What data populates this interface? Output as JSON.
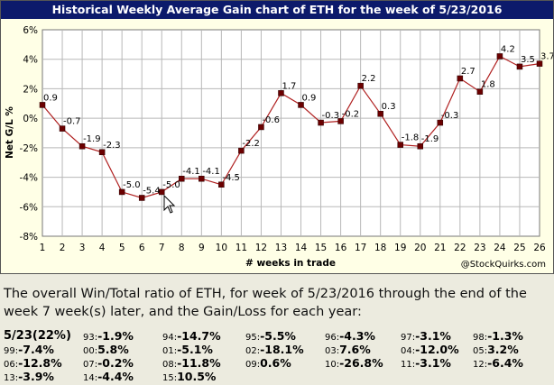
{
  "title": "Historical Weekly Average Gain chart of ETH for the week of 5/23/2016",
  "credit": "@StockQuirks.com",
  "chart_data": {
    "type": "line",
    "xlabel": "# weeks in trade",
    "ylabel": "Net G/L %",
    "x": [
      1,
      2,
      3,
      4,
      5,
      6,
      7,
      8,
      9,
      10,
      11,
      12,
      13,
      14,
      15,
      16,
      17,
      18,
      19,
      20,
      21,
      22,
      23,
      24,
      25,
      26
    ],
    "series": [
      {
        "values": [
          0.9,
          -0.7,
          -1.9,
          -2.3,
          -5.0,
          -5.4,
          -5.0,
          -4.1,
          -4.1,
          -4.5,
          -2.2,
          -0.6,
          1.7,
          0.9,
          -0.3,
          -0.2,
          2.2,
          0.3,
          -1.8,
          -1.9,
          -0.3,
          2.7,
          1.8,
          4.2,
          3.5,
          3.7
        ],
        "labels": [
          "0.9",
          "-0.7",
          "-1.9",
          "-2.3",
          "-5.0",
          "-5.4",
          "-5.0",
          "-4.1",
          "-4.1",
          "-4.5",
          "-2.2",
          "-0.6",
          "1.7",
          "0.9",
          "-0.3",
          "-0.2",
          "2.2",
          "0.3",
          "-1.8",
          "-1.9",
          "-0.3",
          "2.7",
          "1.8",
          "4.2",
          "3.5",
          "3.7"
        ]
      }
    ],
    "ylim": [
      -8,
      6
    ],
    "yticks": [
      "6%",
      "4%",
      "2%",
      "0%",
      "-2%",
      "-4%",
      "-6%",
      "-8%"
    ],
    "ytick_values": [
      6,
      4,
      2,
      0,
      -2,
      -4,
      -6,
      -8
    ],
    "grid": true,
    "line_color": "#b02020",
    "marker_color": "#6b0000"
  },
  "summary": "The overall Win/Total ratio of ETH, for week of 5/23/2016 through the end of the week 7 week(s) later, and the Gain/Loss for each year:",
  "stats": {
    "head": "5/23(22%)",
    "rows": [
      [
        {
          "yr": "93:",
          "val": "-1.9%"
        },
        {
          "yr": "94:",
          "val": "-14.7%"
        },
        {
          "yr": "95:",
          "val": "-5.5%"
        },
        {
          "yr": "96:",
          "val": "-4.3%"
        },
        {
          "yr": "97:",
          "val": "-3.1%"
        },
        {
          "yr": "98:",
          "val": "-1.3%"
        }
      ],
      [
        {
          "yr": "99:",
          "val": "-7.4%"
        },
        {
          "yr": "00:",
          "val": "5.8%"
        },
        {
          "yr": "01:",
          "val": "-5.1%"
        },
        {
          "yr": "02:",
          "val": "-18.1%"
        },
        {
          "yr": "03:",
          "val": "7.6%"
        },
        {
          "yr": "04:",
          "val": "-12.0%"
        },
        {
          "yr": "05:",
          "val": "3.2%"
        }
      ],
      [
        {
          "yr": "06:",
          "val": "-12.8%"
        },
        {
          "yr": "07:",
          "val": "-0.2%"
        },
        {
          "yr": "08:",
          "val": "-11.8%"
        },
        {
          "yr": "09:",
          "val": "0.6%"
        },
        {
          "yr": "10:",
          "val": "-26.8%"
        },
        {
          "yr": "11:",
          "val": "-3.1%"
        },
        {
          "yr": "12:",
          "val": "-6.4%"
        }
      ],
      [
        {
          "yr": "13:",
          "val": "-3.9%"
        },
        {
          "yr": "14:",
          "val": "-4.4%"
        },
        {
          "yr": "15:",
          "val": "10.5%"
        }
      ]
    ]
  }
}
